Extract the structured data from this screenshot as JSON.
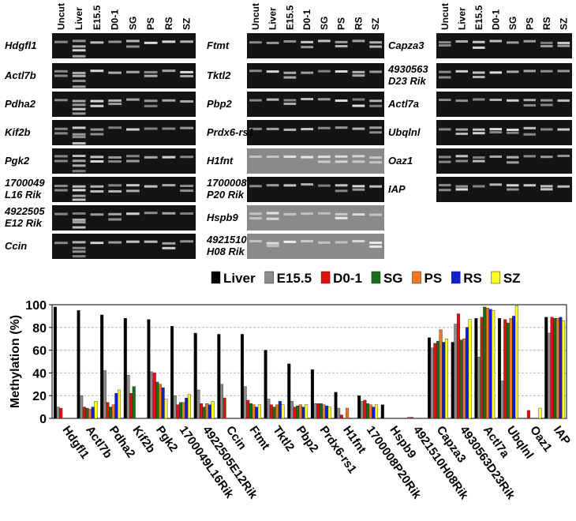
{
  "gels": {
    "lanes": [
      "Uncut",
      "Liver",
      "E15.5",
      "D0-1",
      "SG",
      "PS",
      "RS",
      "SZ"
    ],
    "panels": [
      {
        "genes": [
          [
            "Hdgfl1"
          ],
          [
            "Actl7b"
          ],
          [
            "Pdha2"
          ],
          [
            "Kif2b"
          ],
          [
            "Pgk2"
          ],
          [
            "1700049",
            "L16 Rik"
          ],
          [
            "4922505",
            "E12 Rik"
          ],
          [
            "Ccin"
          ]
        ]
      },
      {
        "genes": [
          [
            "Ftmt"
          ],
          [
            "Tktl2"
          ],
          [
            "Pbp2"
          ],
          [
            "Prdx6-rs1"
          ],
          [
            "H1fnt"
          ],
          [
            "1700008",
            "P20 Rik"
          ],
          [
            "Hspb9"
          ],
          [
            "4921510",
            "H08 Rik"
          ]
        ]
      },
      {
        "genes": [
          [
            "Capza3"
          ],
          [
            "4930563",
            "D23 Rik"
          ],
          [
            "Actl7a"
          ],
          [
            "Ubqlnl"
          ],
          [
            "Oaz1"
          ],
          [
            "IAP"
          ]
        ]
      }
    ]
  },
  "chart_data": {
    "type": "bar",
    "y_label": "Methylation (%)",
    "categories": [
      "Hdgfl1",
      "Actl7b",
      "Pdha2",
      "Kif2b",
      "Pgk2",
      "1700049L16Rik",
      "4922505E12Rik",
      "Ccin",
      "Ftmt",
      "Tktl2",
      "Pbp2",
      "Prdx6-rs1",
      "H1fnt",
      "1700008P20Rik",
      "Hspb9",
      "4921510H08Rik",
      "Capza3",
      "4930563D23Rik",
      "Actl7a",
      "Ubqlnl",
      "Oaz1",
      "IAP"
    ],
    "series": [
      {
        "name": "Liver",
        "color": "#000000",
        "values": [
          98,
          95,
          91,
          88,
          87,
          81,
          75,
          74,
          74,
          60,
          48,
          43,
          23,
          20,
          12,
          null,
          71,
          67,
          88,
          88,
          null,
          89
        ]
      },
      {
        "name": "E15.5",
        "color": "#8c8c8c",
        "values": [
          10,
          20,
          42,
          38,
          41,
          20,
          25,
          30,
          28,
          17,
          15,
          13,
          9,
          15,
          null,
          1,
          62,
          83,
          54,
          33,
          null,
          75
        ]
      },
      {
        "name": "D0-1",
        "color": "#e01010",
        "values": [
          9,
          10,
          14,
          22,
          40,
          12,
          13,
          18,
          16,
          12,
          10,
          13,
          3,
          16,
          null,
          1,
          66,
          92,
          89,
          87,
          7,
          89
        ]
      },
      {
        "name": "SG",
        "color": "#1a6e1a",
        "values": [
          null,
          9,
          10,
          28,
          32,
          14,
          10,
          null,
          13,
          10,
          11,
          13,
          null,
          13,
          null,
          null,
          68,
          69,
          98,
          84,
          null,
          88
        ]
      },
      {
        "name": "PS",
        "color": "#f07820",
        "values": [
          null,
          8,
          12,
          null,
          30,
          14,
          13,
          null,
          12,
          12,
          12,
          12,
          9,
          12,
          null,
          null,
          78,
          70,
          97,
          88,
          null,
          88
        ]
      },
      {
        "name": "RS",
        "color": "#1020d0",
        "values": [
          null,
          10,
          22,
          null,
          27,
          18,
          12,
          null,
          10,
          15,
          10,
          11,
          null,
          10,
          null,
          null,
          67,
          80,
          96,
          90,
          null,
          89
        ]
      },
      {
        "name": "SZ",
        "color": "#ffff20",
        "values": [
          null,
          15,
          25,
          null,
          17,
          21,
          15,
          null,
          12,
          12,
          12,
          10,
          null,
          12,
          null,
          null,
          70,
          87,
          95,
          99,
          9,
          86
        ]
      }
    ],
    "ylim": [
      0,
      100
    ],
    "yticks": [
      0,
      20,
      40,
      60,
      80,
      100
    ],
    "grid": true,
    "legend": "top"
  }
}
